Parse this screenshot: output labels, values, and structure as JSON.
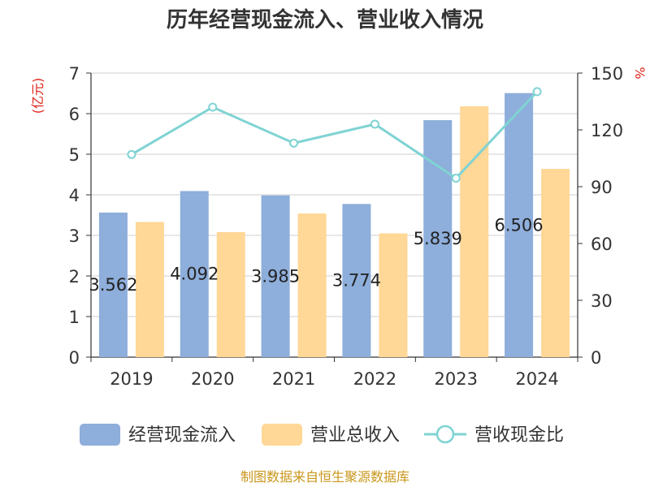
{
  "chart_data": {
    "type": "bar",
    "title": "历年经营现金流入、营业收入情况",
    "categories": [
      "2019",
      "2020",
      "2021",
      "2022",
      "2023",
      "2024"
    ],
    "series": [
      {
        "name": "经营现金流入",
        "type": "bar",
        "axis": "left",
        "color": "#8eaedb",
        "values": [
          3.562,
          4.092,
          3.985,
          3.774,
          5.839,
          6.506
        ],
        "labels": [
          "3.562",
          "4.092",
          "3.985",
          "3.774",
          "5.839",
          "6.506"
        ]
      },
      {
        "name": "营业总收入",
        "type": "bar",
        "axis": "left",
        "color": "#ffd796",
        "values": [
          3.33,
          3.08,
          3.54,
          3.05,
          6.18,
          4.64
        ]
      },
      {
        "name": "营收现金比",
        "type": "line",
        "axis": "right",
        "color": "#7fd3d3",
        "values": [
          107,
          132,
          113,
          123,
          94.5,
          140.2
        ]
      }
    ],
    "y_left": {
      "label": "(亿元)",
      "min": 0,
      "max": 7,
      "ticks": [
        "0",
        "1",
        "2",
        "3",
        "4",
        "5",
        "6",
        "7"
      ]
    },
    "y_right": {
      "label": "%",
      "min": 0,
      "max": 150,
      "ticks": [
        "0",
        "30",
        "60",
        "90",
        "120",
        "150"
      ]
    },
    "grid": true,
    "legend": "bottom"
  },
  "footer": {
    "source": "制图数据来自恒生聚源数据库"
  }
}
